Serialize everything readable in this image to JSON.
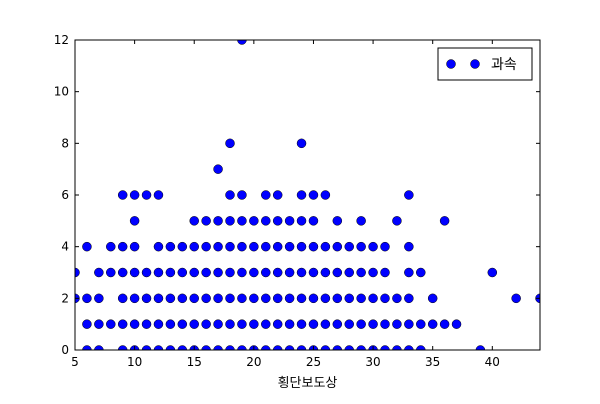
{
  "chart_data": {
    "type": "scatter",
    "xlabel": "횡단보도상",
    "ylabel": "",
    "xlim": [
      5,
      44
    ],
    "ylim": [
      0,
      12
    ],
    "xticks": [
      5,
      10,
      15,
      20,
      25,
      30,
      35,
      40
    ],
    "yticks": [
      0,
      2,
      4,
      6,
      8,
      10,
      12
    ],
    "grid": false,
    "legend": {
      "position": "top-right",
      "entries": [
        "과속"
      ]
    },
    "series": [
      {
        "name": "과속",
        "color": "#0000ff",
        "marker": "circle",
        "points": [
          [
            5,
            2
          ],
          [
            5,
            3
          ],
          [
            6,
            0
          ],
          [
            6,
            1
          ],
          [
            6,
            2
          ],
          [
            6,
            4
          ],
          [
            7,
            0
          ],
          [
            7,
            1
          ],
          [
            7,
            2
          ],
          [
            7,
            3
          ],
          [
            8,
            1
          ],
          [
            8,
            3
          ],
          [
            8,
            4
          ],
          [
            9,
            0
          ],
          [
            9,
            1
          ],
          [
            9,
            2
          ],
          [
            9,
            3
          ],
          [
            9,
            4
          ],
          [
            9,
            6
          ],
          [
            10,
            0
          ],
          [
            10,
            1
          ],
          [
            10,
            2
          ],
          [
            10,
            3
          ],
          [
            10,
            4
          ],
          [
            10,
            5
          ],
          [
            10,
            6
          ],
          [
            11,
            0
          ],
          [
            11,
            1
          ],
          [
            11,
            2
          ],
          [
            11,
            3
          ],
          [
            11,
            6
          ],
          [
            12,
            0
          ],
          [
            12,
            1
          ],
          [
            12,
            2
          ],
          [
            12,
            3
          ],
          [
            12,
            4
          ],
          [
            12,
            6
          ],
          [
            13,
            0
          ],
          [
            13,
            1
          ],
          [
            13,
            2
          ],
          [
            13,
            3
          ],
          [
            13,
            4
          ],
          [
            14,
            0
          ],
          [
            14,
            1
          ],
          [
            14,
            2
          ],
          [
            14,
            3
          ],
          [
            14,
            4
          ],
          [
            15,
            0
          ],
          [
            15,
            1
          ],
          [
            15,
            2
          ],
          [
            15,
            3
          ],
          [
            15,
            4
          ],
          [
            15,
            5
          ],
          [
            16,
            0
          ],
          [
            16,
            1
          ],
          [
            16,
            2
          ],
          [
            16,
            3
          ],
          [
            16,
            4
          ],
          [
            16,
            5
          ],
          [
            17,
            0
          ],
          [
            17,
            1
          ],
          [
            17,
            2
          ],
          [
            17,
            3
          ],
          [
            17,
            4
          ],
          [
            17,
            5
          ],
          [
            17,
            7
          ],
          [
            18,
            0
          ],
          [
            18,
            1
          ],
          [
            18,
            2
          ],
          [
            18,
            3
          ],
          [
            18,
            4
          ],
          [
            18,
            5
          ],
          [
            18,
            6
          ],
          [
            18,
            8
          ],
          [
            19,
            0
          ],
          [
            19,
            1
          ],
          [
            19,
            2
          ],
          [
            19,
            3
          ],
          [
            19,
            4
          ],
          [
            19,
            5
          ],
          [
            19,
            6
          ],
          [
            19,
            12
          ],
          [
            20,
            0
          ],
          [
            20,
            1
          ],
          [
            20,
            2
          ],
          [
            20,
            3
          ],
          [
            20,
            4
          ],
          [
            20,
            5
          ],
          [
            21,
            0
          ],
          [
            21,
            1
          ],
          [
            21,
            2
          ],
          [
            21,
            3
          ],
          [
            21,
            4
          ],
          [
            21,
            5
          ],
          [
            21,
            6
          ],
          [
            22,
            0
          ],
          [
            22,
            1
          ],
          [
            22,
            2
          ],
          [
            22,
            3
          ],
          [
            22,
            4
          ],
          [
            22,
            5
          ],
          [
            22,
            6
          ],
          [
            23,
            0
          ],
          [
            23,
            1
          ],
          [
            23,
            2
          ],
          [
            23,
            3
          ],
          [
            23,
            4
          ],
          [
            23,
            5
          ],
          [
            24,
            0
          ],
          [
            24,
            1
          ],
          [
            24,
            2
          ],
          [
            24,
            3
          ],
          [
            24,
            4
          ],
          [
            24,
            5
          ],
          [
            24,
            6
          ],
          [
            24,
            8
          ],
          [
            25,
            0
          ],
          [
            25,
            1
          ],
          [
            25,
            2
          ],
          [
            25,
            3
          ],
          [
            25,
            4
          ],
          [
            25,
            5
          ],
          [
            25,
            6
          ],
          [
            26,
            0
          ],
          [
            26,
            1
          ],
          [
            26,
            2
          ],
          [
            26,
            3
          ],
          [
            26,
            4
          ],
          [
            26,
            6
          ],
          [
            27,
            0
          ],
          [
            27,
            1
          ],
          [
            27,
            2
          ],
          [
            27,
            3
          ],
          [
            27,
            4
          ],
          [
            27,
            5
          ],
          [
            28,
            0
          ],
          [
            28,
            1
          ],
          [
            28,
            2
          ],
          [
            28,
            3
          ],
          [
            28,
            4
          ],
          [
            29,
            0
          ],
          [
            29,
            1
          ],
          [
            29,
            2
          ],
          [
            29,
            3
          ],
          [
            29,
            4
          ],
          [
            29,
            5
          ],
          [
            30,
            0
          ],
          [
            30,
            1
          ],
          [
            30,
            2
          ],
          [
            30,
            3
          ],
          [
            30,
            4
          ],
          [
            31,
            0
          ],
          [
            31,
            1
          ],
          [
            31,
            2
          ],
          [
            31,
            3
          ],
          [
            31,
            4
          ],
          [
            32,
            0
          ],
          [
            32,
            1
          ],
          [
            32,
            2
          ],
          [
            32,
            5
          ],
          [
            33,
            0
          ],
          [
            33,
            1
          ],
          [
            33,
            2
          ],
          [
            33,
            3
          ],
          [
            33,
            4
          ],
          [
            33,
            6
          ],
          [
            34,
            0
          ],
          [
            34,
            1
          ],
          [
            34,
            3
          ],
          [
            35,
            1
          ],
          [
            35,
            2
          ],
          [
            36,
            1
          ],
          [
            36,
            5
          ],
          [
            37,
            1
          ],
          [
            39,
            0
          ],
          [
            40,
            3
          ],
          [
            42,
            2
          ],
          [
            44,
            2
          ]
        ]
      }
    ]
  }
}
